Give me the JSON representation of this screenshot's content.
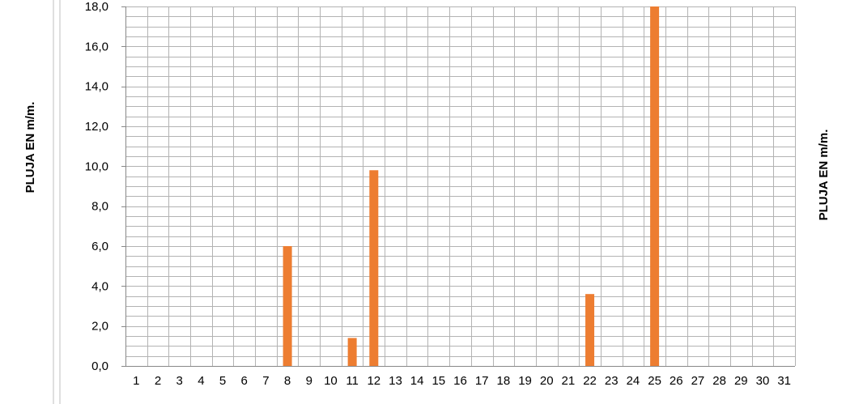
{
  "chart_data": {
    "type": "bar",
    "ylabel_left": "PLUJA EN m/m.",
    "ylabel_right": "PLUJA EN m/m.",
    "categories": [
      "1",
      "2",
      "3",
      "4",
      "5",
      "6",
      "7",
      "8",
      "9",
      "10",
      "11",
      "12",
      "13",
      "14",
      "15",
      "16",
      "17",
      "18",
      "19",
      "20",
      "21",
      "22",
      "23",
      "24",
      "25",
      "26",
      "27",
      "28",
      "29",
      "30",
      "31"
    ],
    "values": [
      0,
      0,
      0,
      0,
      0,
      0,
      0,
      6.0,
      0,
      0,
      1.4,
      9.8,
      0,
      0,
      0,
      0,
      0,
      0,
      0,
      0,
      0,
      3.6,
      0,
      0,
      18.0,
      0,
      0,
      0,
      0,
      0,
      0
    ],
    "ylim": [
      0,
      18
    ],
    "yticks": [
      "0,0",
      "2,0",
      "4,0",
      "6,0",
      "8,0",
      "10,0",
      "12,0",
      "14,0",
      "16,0",
      "18,0"
    ],
    "grid": true,
    "bar_color": "#ED7D31"
  }
}
